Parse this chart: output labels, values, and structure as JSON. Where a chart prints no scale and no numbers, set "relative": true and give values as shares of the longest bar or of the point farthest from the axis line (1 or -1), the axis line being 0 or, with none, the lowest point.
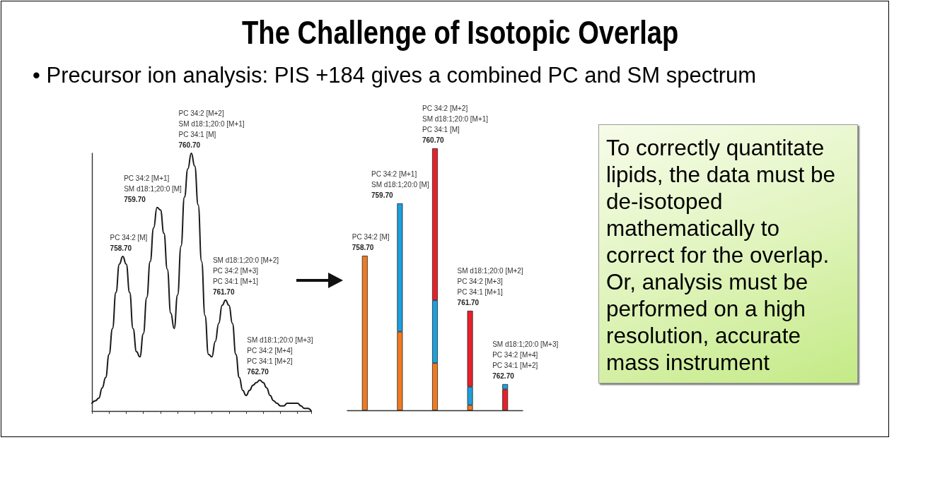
{
  "chart_data": [
    {
      "type": "line",
      "title": "The Challenge of Isotopic Overlap",
      "subtitle": "• Precursor ion analysis: PIS +184 gives a combined PC and SM spectrum",
      "relative": true,
      "categories": [
        null,
        null,
        null,
        null,
        null,
        null,
        null,
        null,
        null,
        null,
        null,
        null,
        null,
        null,
        null,
        null,
        null,
        null,
        null,
        null,
        null,
        null,
        null,
        null,
        null,
        null,
        null,
        null,
        null,
        null,
        null,
        null,
        null,
        null,
        null,
        null,
        null,
        null,
        null,
        null,
        null,
        null,
        null,
        null,
        null,
        null,
        null,
        null,
        null,
        null,
        null,
        null,
        null,
        null,
        null,
        null,
        null,
        null,
        null,
        null,
        null,
        null,
        null,
        null,
        null
      ],
      "values": [
        0.03,
        0.04,
        0.05,
        0.09,
        0.13,
        0.22,
        0.32,
        0.46,
        0.57,
        0.6,
        0.57,
        0.46,
        0.32,
        0.23,
        0.21,
        0.3,
        0.44,
        0.58,
        0.71,
        0.79,
        0.78,
        0.69,
        0.55,
        0.38,
        0.32,
        0.45,
        0.64,
        0.83,
        0.94,
        1.0,
        0.95,
        0.8,
        0.58,
        0.37,
        0.22,
        0.21,
        0.27,
        0.34,
        0.41,
        0.43,
        0.41,
        0.34,
        0.22,
        0.13,
        0.08,
        0.06,
        0.08,
        0.1,
        0.11,
        0.12,
        0.11,
        0.09,
        0.06,
        0.04,
        0.03,
        0.02,
        0.02,
        0.03,
        0.03,
        0.03,
        0.03,
        0.02,
        0.01,
        0.01,
        0.0
      ],
      "color": "#1a1a1a",
      "annotations": [
        "PC 34:2 [M]\n758.70",
        "PC 34:2 [M+1]\nSM d18:1;20:0 [M]\n759.70",
        "PC 34:2 [M+2]\nSM d18:1;20:0 [M+1]\nPC 34:1 [M]\n760.70",
        "SM d18:1;20:0 [M+2]\nPC 34:2 [M+3]\nPC 34:1 [M+1]\n761.70",
        "SM d18:1;20:0 [M+3]\nPC 34:2 [M+4]\nPC 34:1 [M+2]\n762.70"
      ]
    },
    {
      "type": "bar",
      "relative": true,
      "stacked": true,
      "categories": [
        null,
        null,
        null,
        null,
        null
      ],
      "series": [
        {
          "color": "#f07a22",
          "values": [
            0.59,
            0.3,
            0.18,
            0.02,
            null
          ]
        },
        {
          "color": "#1ca0dc",
          "values": [
            null,
            0.49,
            0.24,
            0.07,
            null
          ]
        },
        {
          "color": "#e8202a",
          "values": [
            null,
            null,
            0.58,
            0.29,
            0.08
          ]
        },
        {
          "color": "#1ca0dc",
          "values": [
            null,
            null,
            null,
            null,
            0.02
          ]
        }
      ],
      "annotations": [
        "PC 34:2 [M]\n758.70",
        "PC 34:2 [M+1]\nSM d18:1;20:0 [M]\n759.70",
        "PC 34:2 [M+2]\nSM d18:1;20:0 [M+1]\nPC 34:1 [M]\n760.70",
        "SM d18:1;20:0 [M+2]\nPC 34:2 [M+3]\nPC 34:1 [M+1]\n761.70",
        "SM d18:1;20:0 [M+3]\nPC 34:2 [M+4]\nPC 34:1 [M+2]\n762.70"
      ]
    },
    {
      "type": "other",
      "annotations": [
        "To correctly quantitate lipids, the data must be de-isotoped mathematically to correct for the overlap. Or, analysis must be performed on a high resolution, accurate mass instrument"
      ]
    }
  ]
}
